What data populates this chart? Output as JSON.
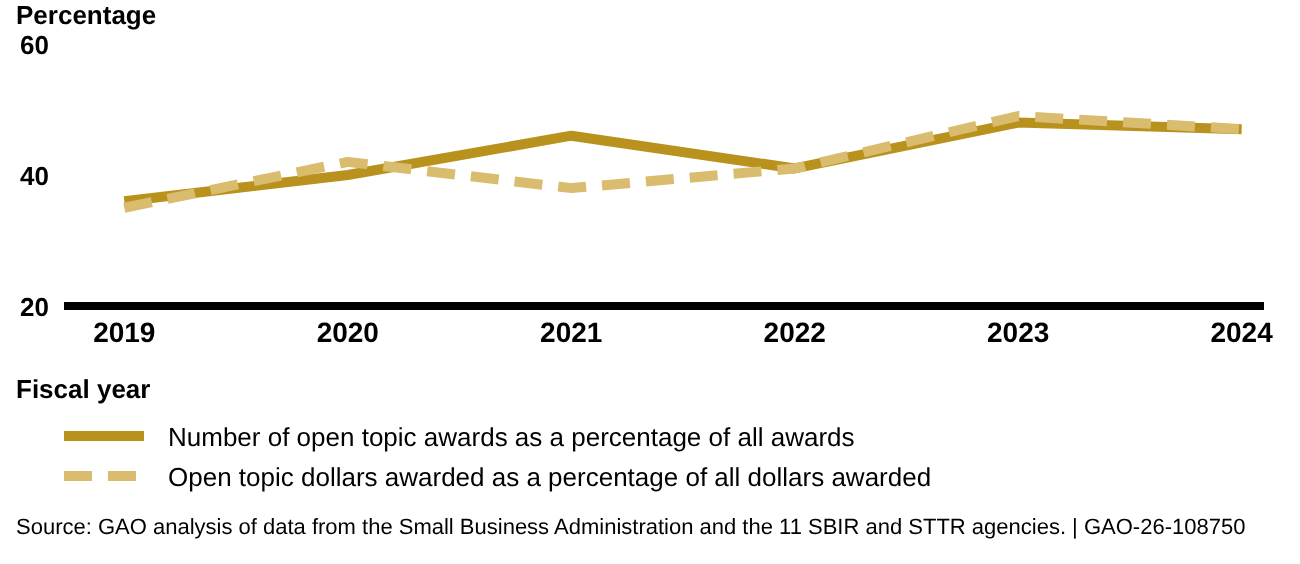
{
  "chart_data": {
    "type": "line",
    "ylabel": "Percentage",
    "xlabel": "Fiscal year",
    "categories": [
      "2019",
      "2020",
      "2021",
      "2022",
      "2023",
      "2024"
    ],
    "series": [
      {
        "name": "Number of open topic awards as a percentage of all awards",
        "color": "#b8921c",
        "values": [
          36,
          40,
          46,
          41,
          48,
          47
        ],
        "line_style": "solid"
      },
      {
        "name": "Open topic dollars awarded as a percentage of all dollars awarded",
        "color": "#d9bc6e",
        "values": [
          35,
          42,
          38,
          41,
          49,
          47
        ],
        "line_style": "dashed"
      }
    ],
    "ylim": [
      20,
      60
    ],
    "yticks": [
      20,
      40,
      60
    ],
    "grid": false,
    "legend": "bottom",
    "marker": "none",
    "annotations": [
      "Source: GAO analysis of data from the Small Business Administration and the 11 SBIR and STTR agencies.  |  GAO-26-108750"
    ]
  }
}
